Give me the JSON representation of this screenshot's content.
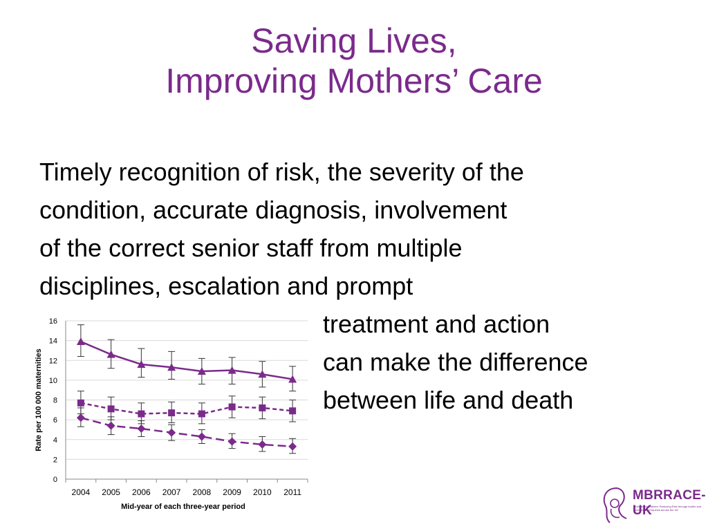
{
  "slide": {
    "title_line1": "Saving Lives,",
    "title_line2": "Improving Mothers’ Care",
    "body_lines": [
      "Timely recognition of risk, the severity of the",
      "condition, accurate diagnosis, involvement",
      "of the correct senior staff from multiple",
      "disciplines, escalation and prompt",
      "treatment and action",
      "can make the difference",
      "between life and death"
    ],
    "accent_color": "#7b2a8c"
  },
  "logo": {
    "name": "MBRRACE-UK",
    "tagline": "Mothers and Babies: Reducing Risk through Audits and Confidential Enquiries across the UK"
  },
  "chart_data": {
    "type": "line",
    "categories": [
      "2004",
      "2005",
      "2006",
      "2007",
      "2008",
      "2009",
      "2010",
      "2011"
    ],
    "ylabel": "Rate per 100 000 maternities",
    "xlabel": "Mid-year of each three-year period",
    "ylim": [
      0,
      16
    ],
    "yticks": [
      0,
      2,
      4,
      6,
      8,
      10,
      12,
      14,
      16
    ],
    "grid": true,
    "color": "#7b2a8c",
    "series": [
      {
        "marker": "triangle",
        "line": "solid",
        "values": [
          13.9,
          12.6,
          11.6,
          11.3,
          10.9,
          11.0,
          10.6,
          10.1
        ],
        "err_low": [
          12.4,
          11.2,
          10.3,
          10.1,
          9.6,
          9.6,
          9.3,
          8.9
        ],
        "err_high": [
          15.6,
          14.1,
          13.2,
          12.9,
          12.2,
          12.3,
          11.9,
          11.4
        ]
      },
      {
        "marker": "square",
        "line": "dashed",
        "values": [
          7.7,
          7.1,
          6.6,
          6.7,
          6.6,
          7.3,
          7.2,
          6.9
        ],
        "err_low": [
          6.6,
          6.0,
          5.6,
          5.7,
          5.6,
          6.2,
          6.1,
          5.8
        ],
        "err_high": [
          8.9,
          8.3,
          7.7,
          7.8,
          7.7,
          8.4,
          8.3,
          8.0
        ]
      },
      {
        "marker": "diamond",
        "line": "long-dash",
        "values": [
          6.2,
          5.4,
          5.1,
          4.7,
          4.3,
          3.8,
          3.5,
          3.3
        ],
        "err_low": [
          5.3,
          4.5,
          4.3,
          3.9,
          3.6,
          3.1,
          2.8,
          2.6
        ],
        "err_high": [
          7.2,
          6.3,
          5.9,
          5.5,
          5.0,
          4.6,
          4.3,
          4.1
        ]
      }
    ]
  }
}
